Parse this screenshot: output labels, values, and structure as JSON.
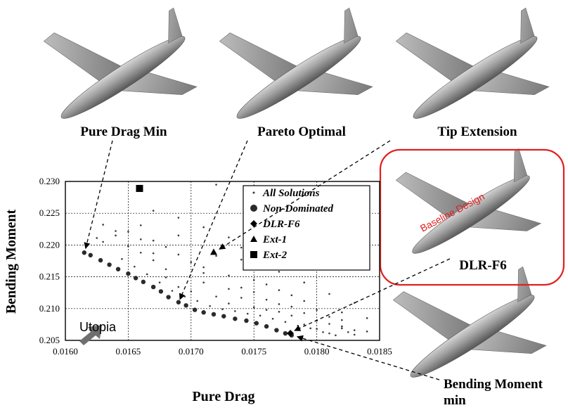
{
  "figure": {
    "labels": {
      "pure_drag_min": "Pure Drag Min",
      "pareto_optimal": "Pareto Optimal",
      "tip_extension": "Tip Extension",
      "dlr_f6": "DLR-F6",
      "baseline_design": "Baseline Design",
      "bending_moment_min_line1": "Bending Moment",
      "bending_moment_min_line2": "min",
      "utopia": "Utopia"
    },
    "colors": {
      "aircraft_body": "#9a9a9a",
      "highlight_box": "#e02020",
      "baseline_text": "#e02020",
      "utopia_arrow": "#707070",
      "points": "#3a3a3a"
    }
  },
  "chart_data": {
    "type": "scatter",
    "xlabel": "Pure Drag",
    "ylabel": "Bending Moment",
    "xlim": [
      0.016,
      0.0185
    ],
    "ylim": [
      0.205,
      0.23
    ],
    "xticks": [
      "0.0160",
      "0.0165",
      "0.0170",
      "0.0175",
      "0.0180",
      "0.0185"
    ],
    "yticks": [
      "0.205",
      "0.210",
      "0.215",
      "0.220",
      "0.225",
      "0.230"
    ],
    "grid": true,
    "legend_position": "top-right",
    "legend": [
      "All Solutions",
      "Non-Dominated",
      "DLR-F6",
      "Ext-1",
      "Ext-2"
    ],
    "series": [
      {
        "name": "Non-Dominated",
        "marker": "circle",
        "points": [
          [
            0.01615,
            0.2188
          ],
          [
            0.0162,
            0.2184
          ],
          [
            0.01628,
            0.2176
          ],
          [
            0.01635,
            0.2169
          ],
          [
            0.01642,
            0.2162
          ],
          [
            0.0165,
            0.2155
          ],
          [
            0.01656,
            0.2148
          ],
          [
            0.01662,
            0.2142
          ],
          [
            0.0167,
            0.2134
          ],
          [
            0.01676,
            0.2127
          ],
          [
            0.01682,
            0.2118
          ],
          [
            0.0169,
            0.211
          ],
          [
            0.01696,
            0.2105
          ],
          [
            0.01703,
            0.2098
          ],
          [
            0.0171,
            0.2094
          ],
          [
            0.01718,
            0.2091
          ],
          [
            0.01726,
            0.2088
          ],
          [
            0.01735,
            0.2084
          ],
          [
            0.01744,
            0.2081
          ],
          [
            0.01752,
            0.2077
          ],
          [
            0.0176,
            0.2072
          ],
          [
            0.01768,
            0.2066
          ],
          [
            0.01775,
            0.2061
          ],
          [
            0.0178,
            0.2058
          ]
        ]
      },
      {
        "name": "DLR-F6",
        "marker": "diamond",
        "points": [
          [
            0.01779,
            0.2061
          ]
        ]
      },
      {
        "name": "Ext-1",
        "marker": "triangle",
        "points": [
          [
            0.01718,
            0.2189
          ]
        ]
      },
      {
        "name": "Ext-2",
        "marker": "square",
        "points": [
          [
            0.01659,
            0.2289
          ]
        ]
      }
    ],
    "all_solutions": {
      "marker": "dot",
      "description_x_range": [
        0.01612,
        0.01835
      ],
      "points": [
        [
          0.0163,
          0.2205
        ],
        [
          0.0164,
          0.2222
        ],
        [
          0.0165,
          0.2198
        ],
        [
          0.0166,
          0.2231
        ],
        [
          0.0167,
          0.2187
        ],
        [
          0.0168,
          0.2162
        ],
        [
          0.0169,
          0.2243
        ],
        [
          0.0164,
          0.2215
        ],
        [
          0.0166,
          0.2188
        ],
        [
          0.0167,
          0.2176
        ],
        [
          0.0168,
          0.2149
        ],
        [
          0.0169,
          0.2134
        ],
        [
          0.017,
          0.2127
        ],
        [
          0.0171,
          0.2141
        ],
        [
          0.0172,
          0.2119
        ],
        [
          0.0173,
          0.2108
        ],
        [
          0.0174,
          0.2133
        ],
        [
          0.0175,
          0.2102
        ],
        [
          0.0176,
          0.2114
        ],
        [
          0.0177,
          0.2095
        ],
        [
          0.0178,
          0.2089
        ],
        [
          0.0179,
          0.2075
        ],
        [
          0.018,
          0.2068
        ],
        [
          0.0181,
          0.2061
        ],
        [
          0.0182,
          0.2072
        ],
        [
          0.0183,
          0.2066
        ],
        [
          0.0171,
          0.2165
        ],
        [
          0.0172,
          0.2183
        ],
        [
          0.0173,
          0.2152
        ],
        [
          0.0174,
          0.2177
        ],
        [
          0.0175,
          0.2145
        ],
        [
          0.0176,
          0.2138
        ],
        [
          0.0177,
          0.2129
        ],
        [
          0.0178,
          0.2121
        ],
        [
          0.0179,
          0.2112
        ],
        [
          0.018,
          0.2098
        ],
        [
          0.0181,
          0.2087
        ],
        [
          0.0182,
          0.2082
        ],
        [
          0.0172,
          0.2295
        ],
        [
          0.0175,
          0.2285
        ],
        [
          0.0167,
          0.2254
        ],
        [
          0.0163,
          0.2232
        ],
        [
          0.0165,
          0.2221
        ],
        [
          0.0166,
          0.2209
        ],
        [
          0.0168,
          0.2197
        ],
        [
          0.0169,
          0.2185
        ],
        [
          0.017,
          0.2173
        ],
        [
          0.0171,
          0.2156
        ],
        [
          0.0173,
          0.2131
        ],
        [
          0.0174,
          0.2117
        ],
        [
          0.0175,
          0.2126
        ],
        [
          0.0176,
          0.2098
        ],
        [
          0.0177,
          0.2107
        ],
        [
          0.0178,
          0.2103
        ],
        [
          0.0179,
          0.2093
        ],
        [
          0.018,
          0.2081
        ],
        [
          0.0181,
          0.2076
        ],
        [
          0.0182,
          0.2069
        ],
        [
          0.0183,
          0.2059
        ],
        [
          0.0184,
          0.2064
        ],
        [
          0.01625,
          0.2211
        ],
        [
          0.01645,
          0.2178
        ],
        [
          0.01655,
          0.2166
        ],
        [
          0.01665,
          0.2154
        ],
        [
          0.01675,
          0.2141
        ],
        [
          0.01685,
          0.2128
        ],
        [
          0.01695,
          0.2119
        ],
        [
          0.01705,
          0.2112
        ],
        [
          0.01715,
          0.2104
        ],
        [
          0.01725,
          0.2099
        ],
        [
          0.01735,
          0.2096
        ],
        [
          0.01745,
          0.2092
        ],
        [
          0.01755,
          0.2089
        ],
        [
          0.01765,
          0.2084
        ],
        [
          0.01775,
          0.2079
        ],
        [
          0.01785,
          0.2073
        ],
        [
          0.01795,
          0.2069
        ],
        [
          0.01805,
          0.2063
        ],
        [
          0.01815,
          0.2058
        ],
        [
          0.01825,
          0.2063
        ],
        [
          0.0177,
          0.2158
        ],
        [
          0.0179,
          0.2141
        ],
        [
          0.0181,
          0.2123
        ],
        [
          0.0183,
          0.2109
        ],
        [
          0.0176,
          0.2171
        ],
        [
          0.0174,
          0.2196
        ],
        [
          0.0173,
          0.2212
        ],
        [
          0.0171,
          0.2228
        ],
        [
          0.0169,
          0.2215
        ],
        [
          0.0167,
          0.2207
        ],
        [
          0.0182,
          0.2094
        ],
        [
          0.0184,
          0.2085
        ]
      ]
    }
  }
}
